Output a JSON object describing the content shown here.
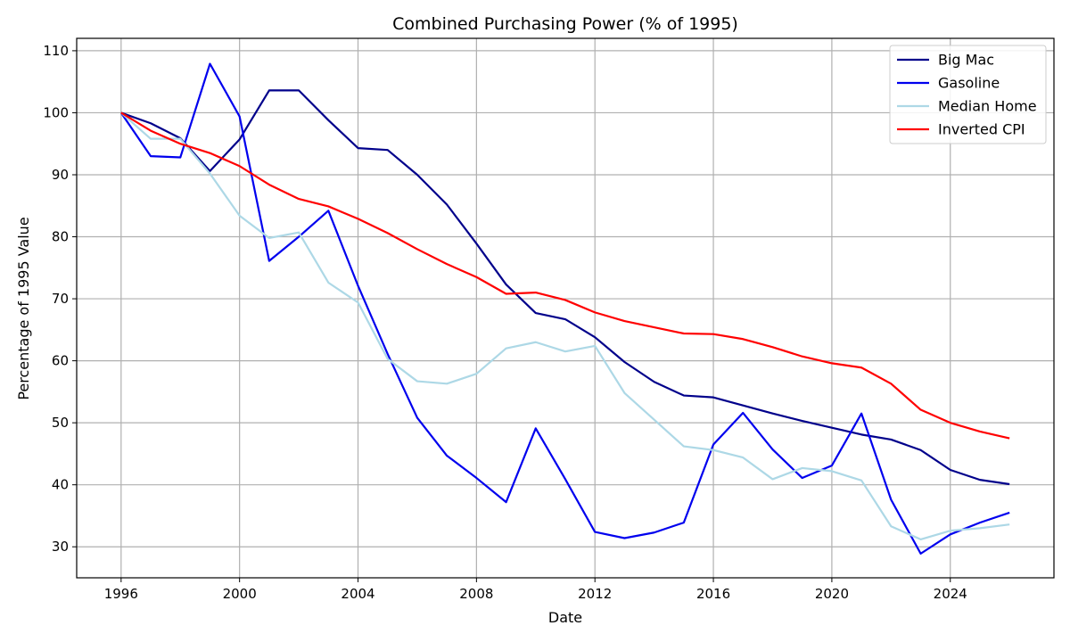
{
  "chart_data": {
    "type": "line",
    "title": "Combined Purchasing Power (% of 1995)",
    "xlabel": "Date",
    "ylabel": "Percentage of 1995 Value",
    "xlim": [
      1994.5,
      2027.5
    ],
    "ylim": [
      25,
      112
    ],
    "x_ticks": [
      1996,
      2000,
      2004,
      2008,
      2012,
      2016,
      2020,
      2024
    ],
    "y_ticks": [
      30,
      40,
      50,
      60,
      70,
      80,
      90,
      100,
      110
    ],
    "grid": true,
    "legend_position": "top-right",
    "x": [
      1996,
      1997,
      1998,
      1999,
      2000,
      2001,
      2002,
      2003,
      2004,
      2005,
      2006,
      2007,
      2008,
      2009,
      2010,
      2011,
      2012,
      2013,
      2014,
      2015,
      2016,
      2017,
      2018,
      2019,
      2020,
      2021,
      2022,
      2023,
      2024,
      2025,
      2026
    ],
    "series": [
      {
        "name": "Big Mac",
        "color": "#00008b",
        "values": [
          100,
          98.3,
          95.9,
          90.6,
          95.7,
          103.6,
          103.6,
          98.8,
          94.3,
          94.0,
          90.0,
          85.2,
          78.9,
          72.3,
          67.7,
          66.7,
          63.8,
          59.8,
          56.6,
          54.4,
          54.1,
          52.8,
          51.5,
          50.3,
          49.2,
          48.1,
          47.3,
          45.6,
          42.4,
          40.8,
          40.1
        ]
      },
      {
        "name": "Gasoline",
        "color": "#0000ee",
        "values": [
          100,
          93.0,
          92.8,
          107.9,
          99.4,
          76.1,
          80.0,
          84.2,
          72.1,
          61.1,
          50.8,
          44.7,
          41.1,
          37.2,
          49.1,
          40.9,
          32.4,
          31.4,
          32.3,
          33.9,
          46.5,
          51.6,
          45.7,
          41.1,
          43.1,
          51.5,
          37.6,
          28.9,
          32.0,
          33.9,
          35.5
        ]
      },
      {
        "name": "Median Home",
        "color": "#add8e6",
        "values": [
          100,
          95.8,
          95.8,
          90.2,
          83.4,
          79.8,
          80.7,
          72.6,
          69.4,
          60.3,
          56.7,
          56.3,
          57.9,
          62.0,
          63.0,
          61.5,
          62.4,
          54.8,
          50.5,
          46.2,
          45.6,
          44.4,
          40.9,
          42.7,
          42.2,
          40.7,
          33.3,
          31.2,
          32.6,
          33.0,
          33.6
        ]
      },
      {
        "name": "Inverted CPI",
        "color": "#ff0000",
        "values": [
          100,
          97.1,
          95.0,
          93.5,
          91.4,
          88.4,
          86.1,
          84.9,
          82.9,
          80.6,
          78.0,
          75.6,
          73.5,
          70.8,
          71.0,
          69.8,
          67.8,
          66.4,
          65.4,
          64.4,
          64.3,
          63.5,
          62.2,
          60.7,
          59.6,
          58.9,
          56.3,
          52.1,
          50.0,
          48.6,
          47.5
        ]
      }
    ]
  }
}
